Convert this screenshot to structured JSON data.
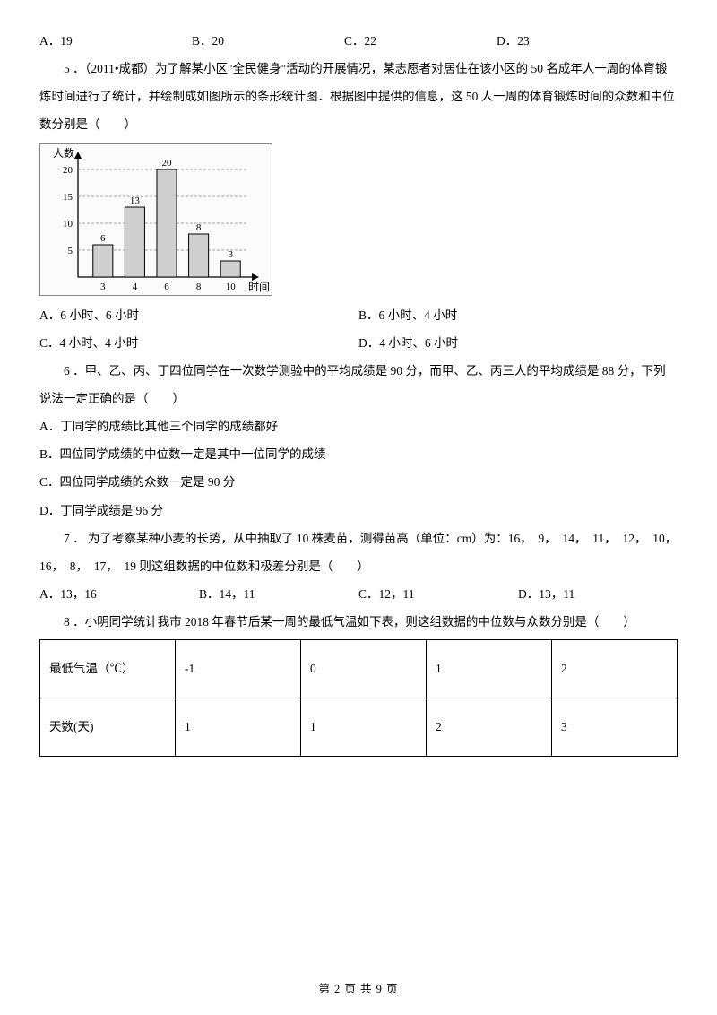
{
  "q4_options": {
    "a": "A．19",
    "b": "B．20",
    "c": "C．22",
    "d": "D．23"
  },
  "q5": {
    "stem": "5 ．（2011•成都）为了解某小区\"全民健身\"活动的开展情况，某志愿者对居住在该小区的 50 名成年人一周的体育锻炼时间进行了统计，并绘制成如图所示的条形统计图．根据图中提供的信息，这 50 人一周的体育锻炼时间的众数和中位数分别是（　　）",
    "opts": {
      "a": "A．6 小时、6 小时",
      "b": "B．6 小时、4 小时",
      "c": "C．4 小时、4 小时",
      "d": "D．4 小时、6 小时"
    },
    "chart": {
      "y_label": "人数",
      "x_label": "时间",
      "y_ticks": [
        "5",
        "10",
        "15",
        "20"
      ],
      "x_categories": [
        "3",
        "4",
        "6",
        "8",
        "10"
      ],
      "values": [
        6,
        13,
        20,
        8,
        3
      ],
      "bar_labels": [
        "6",
        "13",
        "20",
        "8",
        "3"
      ],
      "bar_fill": "#cfcfcf",
      "bar_stroke": "#000000",
      "axis_color": "#000000",
      "grid_dash": "3,2",
      "grid_color": "#888888",
      "bg": "#fbfbfb"
    }
  },
  "q6": {
    "stem": "6 ．甲、乙、丙、丁四位同学在一次数学测验中的平均成绩是 90 分，而甲、乙、丙三人的平均成绩是 88 分，下列说法一定正确的是（　　）",
    "a": "A．丁同学的成绩比其他三个同学的成绩都好",
    "b": "B．四位同学成绩的中位数一定是其中一位同学的成绩",
    "c": "C．四位同学成绩的众数一定是 90 分",
    "d": "D．丁同学成绩是 96 分"
  },
  "q7": {
    "stem": "7 ． 为了考察某种小麦的长势，从中抽取了 10 株麦苗，测得苗高（单位：cm）为：16，　9，　14，　11，　12，　10，　16，　8，　17，　19 则这组数据的中位数和极差分别是（　　）",
    "a": "A．13，16",
    "b": "B．14，11",
    "c": "C．12，11",
    "d": "D．13，11"
  },
  "q8": {
    "stem": "8 ．小明同学统计我市 2018 年春节后某一周的最低气温如下表，则这组数据的中位数与众数分别是（　　）",
    "row1_label": "最低气温（℃）",
    "row1": [
      "-1",
      "0",
      "1",
      "2"
    ],
    "row2_label": "天数(天)",
    "row2": [
      "1",
      "1",
      "2",
      "3"
    ]
  },
  "footer": "第 2 页 共 9 页"
}
